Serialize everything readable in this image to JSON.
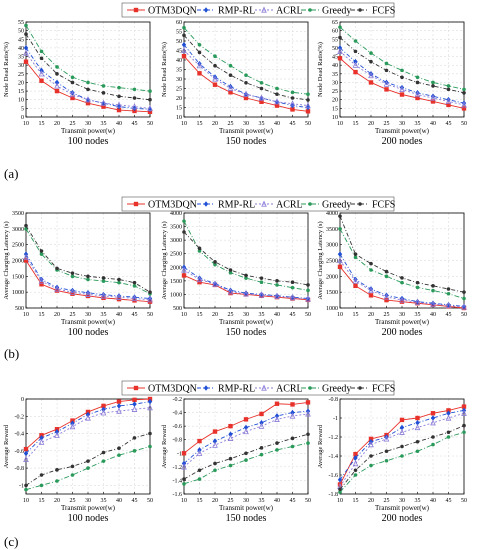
{
  "figure": {
    "panel_labels": [
      "(a)",
      "(b)",
      "(c)"
    ],
    "legend_entries": [
      "OTM3DQN",
      "RMP-RL",
      "ACRL",
      "Greedy",
      "FCFS"
    ],
    "series_styles": [
      {
        "color": "#e8312a",
        "dash": "",
        "marker": "square"
      },
      {
        "color": "#1f4fd4",
        "dash": "4 2 1 2",
        "marker": "diamond"
      },
      {
        "color": "#8a7bd8",
        "dash": "2 2",
        "marker": "triangle"
      },
      {
        "color": "#2a9a5a",
        "dash": "5 2 1 2",
        "marker": "circle"
      },
      {
        "color": "#333333",
        "dash": "4 2 1 2",
        "marker": "circle"
      }
    ]
  },
  "chart_data": [
    {
      "type": "line",
      "row": 0,
      "col": 0,
      "xlabel": "Transmit power(w)",
      "ylabel": "Node Dead Ratio(%)",
      "caption": "100 nodes",
      "x": [
        10,
        15,
        20,
        25,
        30,
        35,
        40,
        45,
        50
      ],
      "xlim": [
        10,
        50
      ],
      "ylim": [
        0,
        55
      ],
      "xticks": [
        10,
        15,
        20,
        25,
        30,
        35,
        40,
        45,
        50
      ],
      "yticks": [
        0,
        5,
        10,
        15,
        20,
        25,
        30,
        35,
        40,
        45,
        50,
        55
      ],
      "series": [
        {
          "name": "OTM3DQN",
          "values": [
            32,
            21,
            15,
            11,
            8,
            6,
            4,
            3.5,
            3
          ]
        },
        {
          "name": "RMP-RL",
          "values": [
            40,
            27,
            20,
            14,
            10,
            8,
            6,
            5,
            4.5
          ]
        },
        {
          "name": "ACRL",
          "values": [
            37,
            25,
            18,
            13,
            10,
            8,
            7,
            6,
            5
          ]
        },
        {
          "name": "Greedy",
          "values": [
            53,
            38,
            29,
            23,
            20,
            18,
            17,
            16,
            15
          ]
        },
        {
          "name": "FCFS",
          "values": [
            48,
            34,
            25,
            20,
            16,
            14,
            12,
            11,
            10
          ]
        }
      ]
    },
    {
      "type": "line",
      "row": 0,
      "col": 1,
      "xlabel": "Transmit power(w)",
      "ylabel": "Node Dead Ratio(%)",
      "caption": "150 nodes",
      "x": [
        10,
        15,
        20,
        25,
        30,
        35,
        40,
        45,
        50
      ],
      "xlim": [
        10,
        50
      ],
      "ylim": [
        10,
        60
      ],
      "xticks": [
        10,
        15,
        20,
        25,
        30,
        35,
        40,
        45,
        50
      ],
      "yticks": [
        10,
        15,
        20,
        25,
        30,
        35,
        40,
        45,
        50,
        55,
        60
      ],
      "series": [
        {
          "name": "OTM3DQN",
          "values": [
            42,
            33,
            27,
            23,
            20,
            18,
            16,
            14,
            13
          ]
        },
        {
          "name": "RMP-RL",
          "values": [
            48,
            38,
            31,
            26,
            22,
            20,
            18,
            16,
            15
          ]
        },
        {
          "name": "ACRL",
          "values": [
            45,
            37,
            30,
            25,
            22,
            20,
            18,
            17,
            16
          ]
        },
        {
          "name": "Greedy",
          "values": [
            57,
            48,
            42,
            37,
            32,
            28,
            25,
            23,
            22
          ]
        },
        {
          "name": "FCFS",
          "values": [
            53,
            44,
            37,
            32,
            28,
            25,
            22,
            20,
            19
          ]
        }
      ]
    },
    {
      "type": "line",
      "row": 0,
      "col": 2,
      "xlabel": "Transmit power(w)",
      "ylabel": "Node Dead Ratio(%)",
      "caption": "200 nodes",
      "x": [
        10,
        15,
        20,
        25,
        30,
        35,
        40,
        45,
        50
      ],
      "xlim": [
        10,
        50
      ],
      "ylim": [
        10,
        65
      ],
      "xticks": [
        10,
        15,
        20,
        25,
        30,
        35,
        40,
        45,
        50
      ],
      "yticks": [
        10,
        15,
        20,
        25,
        30,
        35,
        40,
        45,
        50,
        55,
        60,
        65
      ],
      "series": [
        {
          "name": "OTM3DQN",
          "values": [
            44,
            36,
            30,
            26,
            23,
            21,
            19,
            17,
            15
          ]
        },
        {
          "name": "RMP-RL",
          "values": [
            50,
            42,
            35,
            30,
            27,
            24,
            22,
            20,
            18
          ]
        },
        {
          "name": "ACRL",
          "values": [
            48,
            40,
            34,
            29,
            26,
            23,
            21,
            19,
            17
          ]
        },
        {
          "name": "Greedy",
          "values": [
            62,
            54,
            47,
            41,
            37,
            33,
            30,
            28,
            26
          ]
        },
        {
          "name": "FCFS",
          "values": [
            56,
            48,
            42,
            37,
            33,
            30,
            28,
            26,
            24
          ]
        }
      ]
    },
    {
      "type": "line",
      "row": 1,
      "col": 0,
      "xlabel": "Transmit power(w)",
      "ylabel": "Average Charging Latency (s)",
      "caption": "100 nodes",
      "x": [
        10,
        15,
        20,
        25,
        30,
        35,
        40,
        45,
        50
      ],
      "xlim": [
        10,
        50
      ],
      "ylim": [
        500,
        3500
      ],
      "xticks": [
        10,
        15,
        20,
        25,
        30,
        35,
        40,
        45,
        50
      ],
      "yticks": [
        500,
        1000,
        1500,
        2000,
        2500,
        3000,
        3500
      ],
      "series": [
        {
          "name": "OTM3DQN",
          "values": [
            2000,
            1250,
            1050,
            950,
            880,
            820,
            780,
            740,
            700
          ]
        },
        {
          "name": "RMP-RL",
          "values": [
            2200,
            1400,
            1150,
            1050,
            980,
            920,
            880,
            840,
            800
          ]
        },
        {
          "name": "ACRL",
          "values": [
            2100,
            1350,
            1100,
            1000,
            930,
            880,
            840,
            800,
            760
          ]
        },
        {
          "name": "Greedy",
          "values": [
            3000,
            2200,
            1700,
            1500,
            1400,
            1350,
            1300,
            1200,
            950
          ]
        },
        {
          "name": "FCFS",
          "values": [
            3100,
            2300,
            1750,
            1600,
            1500,
            1450,
            1400,
            1300,
            1000
          ]
        }
      ]
    },
    {
      "type": "line",
      "row": 1,
      "col": 1,
      "xlabel": "Transmit power(w)",
      "ylabel": "Average Charging Latency (s)",
      "caption": "150 nodes",
      "x": [
        10,
        15,
        20,
        25,
        30,
        35,
        40,
        45,
        50
      ],
      "xlim": [
        10,
        50
      ],
      "ylim": [
        500,
        4000
      ],
      "xticks": [
        10,
        15,
        20,
        25,
        30,
        35,
        40,
        45,
        50
      ],
      "yticks": [
        500,
        1000,
        1500,
        2000,
        2500,
        3000,
        3500,
        4000
      ],
      "series": [
        {
          "name": "OTM3DQN",
          "values": [
            1700,
            1450,
            1350,
            1050,
            1000,
            950,
            900,
            850,
            800
          ]
        },
        {
          "name": "RMP-RL",
          "values": [
            2000,
            1600,
            1400,
            1150,
            1050,
            1000,
            950,
            900,
            850
          ]
        },
        {
          "name": "ACRL",
          "values": [
            1900,
            1550,
            1380,
            1100,
            1020,
            980,
            930,
            880,
            830
          ]
        },
        {
          "name": "Greedy",
          "values": [
            3700,
            2600,
            2100,
            1800,
            1600,
            1450,
            1350,
            1250,
            1150
          ]
        },
        {
          "name": "FCFS",
          "values": [
            3300,
            2700,
            2200,
            1900,
            1700,
            1600,
            1500,
            1450,
            1350
          ]
        }
      ]
    },
    {
      "type": "line",
      "row": 1,
      "col": 2,
      "xlabel": "Transmit power(w)",
      "ylabel": "Average Charging Latency (s)",
      "caption": "200 nodes",
      "x": [
        10,
        15,
        20,
        25,
        30,
        35,
        40,
        45,
        50
      ],
      "xlim": [
        10,
        50
      ],
      "ylim": [
        1000,
        4000
      ],
      "xticks": [
        10,
        15,
        20,
        25,
        30,
        35,
        40,
        45,
        50
      ],
      "yticks": [
        1000,
        1500,
        2000,
        2500,
        3000,
        3500,
        4000
      ],
      "series": [
        {
          "name": "OTM3DQN",
          "values": [
            2300,
            1700,
            1400,
            1250,
            1200,
            1150,
            1100,
            1050,
            1000
          ]
        },
        {
          "name": "RMP-RL",
          "values": [
            2700,
            1900,
            1600,
            1400,
            1300,
            1200,
            1150,
            1100,
            1050
          ]
        },
        {
          "name": "ACRL",
          "values": [
            2500,
            1850,
            1550,
            1350,
            1250,
            1180,
            1120,
            1080,
            1030
          ]
        },
        {
          "name": "Greedy",
          "values": [
            3500,
            2600,
            2200,
            2000,
            1800,
            1650,
            1550,
            1450,
            1300
          ]
        },
        {
          "name": "FCFS",
          "values": [
            3900,
            2700,
            2400,
            2150,
            1950,
            1800,
            1700,
            1600,
            1500
          ]
        }
      ]
    },
    {
      "type": "line",
      "row": 2,
      "col": 0,
      "xlabel": "Transmit power(w)",
      "ylabel": "Average Reward",
      "caption": "100 nodes",
      "x": [
        10,
        15,
        20,
        25,
        30,
        35,
        40,
        45,
        50
      ],
      "xlim": [
        10,
        50
      ],
      "ylim": [
        -1.1,
        0.0
      ],
      "xticks": [
        10,
        15,
        20,
        25,
        30,
        35,
        40,
        45,
        50
      ],
      "yticks": [
        -1.0,
        -0.8,
        -0.6,
        -0.4,
        -0.2,
        0.0
      ],
      "series": [
        {
          "name": "OTM3DQN",
          "values": [
            -0.58,
            -0.42,
            -0.35,
            -0.25,
            -0.15,
            -0.08,
            -0.03,
            -0.01,
            0.0
          ]
        },
        {
          "name": "RMP-RL",
          "values": [
            -0.63,
            -0.45,
            -0.38,
            -0.28,
            -0.18,
            -0.12,
            -0.08,
            -0.06,
            -0.03
          ]
        },
        {
          "name": "ACRL",
          "values": [
            -0.7,
            -0.5,
            -0.42,
            -0.32,
            -0.22,
            -0.16,
            -0.14,
            -0.12,
            -0.1
          ]
        },
        {
          "name": "Greedy",
          "values": [
            -1.05,
            -1.0,
            -0.95,
            -0.88,
            -0.8,
            -0.72,
            -0.65,
            -0.6,
            -0.55
          ]
        },
        {
          "name": "FCFS",
          "values": [
            -1.0,
            -0.88,
            -0.82,
            -0.78,
            -0.72,
            -0.62,
            -0.57,
            -0.45,
            -0.4
          ]
        }
      ]
    },
    {
      "type": "line",
      "row": 2,
      "col": 1,
      "xlabel": "Transmit power(w)",
      "ylabel": "Average Reward",
      "caption": "150 nodes",
      "x": [
        10,
        15,
        20,
        25,
        30,
        35,
        40,
        45,
        50
      ],
      "xlim": [
        10,
        50
      ],
      "ylim": [
        -1.6,
        -0.2
      ],
      "xticks": [
        10,
        15,
        20,
        25,
        30,
        35,
        40,
        45,
        50
      ],
      "yticks": [
        -1.6,
        -1.4,
        -1.2,
        -1.0,
        -0.8,
        -0.6,
        -0.4,
        -0.2
      ],
      "series": [
        {
          "name": "OTM3DQN",
          "values": [
            -1.0,
            -0.82,
            -0.68,
            -0.6,
            -0.5,
            -0.42,
            -0.27,
            -0.28,
            -0.25
          ]
        },
        {
          "name": "RMP-RL",
          "values": [
            -1.15,
            -0.95,
            -0.82,
            -0.72,
            -0.62,
            -0.55,
            -0.45,
            -0.4,
            -0.38
          ]
        },
        {
          "name": "ACRL",
          "values": [
            -1.2,
            -1.0,
            -0.88,
            -0.78,
            -0.68,
            -0.6,
            -0.5,
            -0.45,
            -0.42
          ]
        },
        {
          "name": "Greedy",
          "values": [
            -1.45,
            -1.38,
            -1.25,
            -1.18,
            -1.1,
            -1.02,
            -0.95,
            -0.9,
            -0.85
          ]
        },
        {
          "name": "FCFS",
          "values": [
            -1.38,
            -1.25,
            -1.15,
            -1.08,
            -1.0,
            -0.92,
            -0.85,
            -0.78,
            -0.72
          ]
        }
      ]
    },
    {
      "type": "line",
      "row": 2,
      "col": 2,
      "xlabel": "Transmit power(w)",
      "ylabel": "Average Reward",
      "caption": "200 nodes",
      "x": [
        10,
        15,
        20,
        25,
        30,
        35,
        40,
        45,
        50
      ],
      "xlim": [
        10,
        50
      ],
      "ylim": [
        -1.8,
        -0.8
      ],
      "xticks": [
        10,
        15,
        20,
        25,
        30,
        35,
        40,
        45,
        50
      ],
      "yticks": [
        -1.8,
        -1.6,
        -1.4,
        -1.2,
        -1.0,
        -0.8
      ],
      "series": [
        {
          "name": "OTM3DQN",
          "values": [
            -1.7,
            -1.38,
            -1.22,
            -1.18,
            -1.02,
            -1.0,
            -0.95,
            -0.92,
            -0.88
          ]
        },
        {
          "name": "RMP-RL",
          "values": [
            -1.65,
            -1.42,
            -1.25,
            -1.2,
            -1.1,
            -1.05,
            -1.0,
            -0.95,
            -0.92
          ]
        },
        {
          "name": "ACRL",
          "values": [
            -1.72,
            -1.48,
            -1.28,
            -1.22,
            -1.15,
            -1.1,
            -1.05,
            -1.0,
            -0.95
          ]
        },
        {
          "name": "Greedy",
          "values": [
            -1.78,
            -1.6,
            -1.5,
            -1.45,
            -1.4,
            -1.35,
            -1.28,
            -1.2,
            -1.15
          ]
        },
        {
          "name": "FCFS",
          "values": [
            -1.75,
            -1.55,
            -1.4,
            -1.35,
            -1.3,
            -1.25,
            -1.2,
            -1.15,
            -1.08
          ]
        }
      ]
    }
  ]
}
